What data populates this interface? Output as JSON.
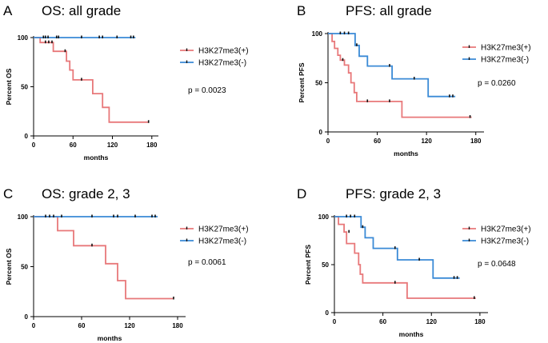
{
  "figure": {
    "colors": {
      "positive": "#e8787a",
      "negative": "#3a8ad6",
      "censor": "#111111"
    }
  },
  "chart_data": [
    {
      "type": "line",
      "panel_letter": "A",
      "title": "OS: all grade",
      "xlabel": "months",
      "ylabel": "Percent OS",
      "xlim": [
        0,
        190
      ],
      "ylim": [
        0,
        100
      ],
      "xticks": [
        0,
        60,
        120,
        180
      ],
      "yticks": [
        0,
        50,
        100
      ],
      "p_value": "p =  0.0023",
      "series": [
        {
          "name": "H3K27me3(+)",
          "color": "#e8787a",
          "steps": [
            [
              0,
              100
            ],
            [
              10,
              100
            ],
            [
              10,
              95
            ],
            [
              15,
              95
            ],
            [
              15,
              95
            ],
            [
              30,
              95
            ],
            [
              30,
              86
            ],
            [
              50,
              86
            ],
            [
              50,
              76
            ],
            [
              55,
              76
            ],
            [
              55,
              67
            ],
            [
              60,
              67
            ],
            [
              60,
              57
            ],
            [
              90,
              57
            ],
            [
              90,
              43
            ],
            [
              105,
              43
            ],
            [
              105,
              29
            ],
            [
              115,
              29
            ],
            [
              115,
              14
            ],
            [
              175,
              14
            ]
          ],
          "censors": [
            [
              18,
              95
            ],
            [
              23,
              95
            ],
            [
              28,
              95
            ],
            [
              48,
              86
            ],
            [
              73,
              57
            ],
            [
              175,
              14
            ]
          ]
        },
        {
          "name": "H3K27me3(-)",
          "color": "#3a8ad6",
          "steps": [
            [
              0,
              100
            ],
            [
              155,
              100
            ]
          ],
          "censors": [
            [
              15,
              100
            ],
            [
              18,
              100
            ],
            [
              22,
              100
            ],
            [
              35,
              100
            ],
            [
              38,
              100
            ],
            [
              73,
              100
            ],
            [
              100,
              100
            ],
            [
              105,
              100
            ],
            [
              127,
              100
            ],
            [
              148,
              100
            ],
            [
              152,
              100
            ]
          ]
        }
      ]
    },
    {
      "type": "line",
      "panel_letter": "B",
      "title": "PFS: all grade",
      "xlabel": "months",
      "ylabel": "Percent PFS",
      "xlim": [
        0,
        190
      ],
      "ylim": [
        0,
        100
      ],
      "xticks": [
        0,
        60,
        120,
        180
      ],
      "yticks": [
        0,
        50,
        100
      ],
      "p_value": "p = 0.0260",
      "series": [
        {
          "name": "H3K27me3(+)",
          "color": "#e8787a",
          "steps": [
            [
              0,
              100
            ],
            [
              5,
              100
            ],
            [
              5,
              92
            ],
            [
              8,
              92
            ],
            [
              8,
              85
            ],
            [
              12,
              85
            ],
            [
              12,
              78
            ],
            [
              15,
              78
            ],
            [
              15,
              73
            ],
            [
              20,
              73
            ],
            [
              20,
              68
            ],
            [
              25,
              68
            ],
            [
              25,
              60
            ],
            [
              28,
              60
            ],
            [
              28,
              50
            ],
            [
              32,
              50
            ],
            [
              32,
              40
            ],
            [
              35,
              40
            ],
            [
              35,
              31
            ],
            [
              90,
              31
            ],
            [
              90,
              15
            ],
            [
              175,
              15
            ]
          ],
          "censors": [
            [
              18,
              73
            ],
            [
              48,
              31
            ],
            [
              75,
              31
            ],
            [
              173,
              15
            ]
          ]
        },
        {
          "name": "H3K27me3(-)",
          "color": "#3a8ad6",
          "steps": [
            [
              0,
              100
            ],
            [
              33,
              100
            ],
            [
              33,
              88
            ],
            [
              38,
              88
            ],
            [
              38,
              77
            ],
            [
              48,
              77
            ],
            [
              48,
              67
            ],
            [
              78,
              67
            ],
            [
              78,
              54
            ],
            [
              122,
              54
            ],
            [
              122,
              36
            ],
            [
              155,
              36
            ]
          ],
          "censors": [
            [
              15,
              100
            ],
            [
              20,
              100
            ],
            [
              25,
              100
            ],
            [
              35,
              88
            ],
            [
              75,
              67
            ],
            [
              105,
              54
            ],
            [
              148,
              36
            ],
            [
              152,
              36
            ]
          ]
        }
      ]
    },
    {
      "type": "line",
      "panel_letter": "C",
      "title": "OS: grade 2, 3",
      "xlabel": "months",
      "ylabel": "Percent OS",
      "xlim": [
        0,
        190
      ],
      "ylim": [
        0,
        100
      ],
      "xticks": [
        0,
        60,
        120,
        180
      ],
      "yticks": [
        0,
        50,
        100
      ],
      "p_value": "p =  0.0061",
      "series": [
        {
          "name": "H3K27me3(+)",
          "color": "#e8787a",
          "steps": [
            [
              0,
              100
            ],
            [
              30,
              100
            ],
            [
              30,
              86
            ],
            [
              50,
              86
            ],
            [
              50,
              71
            ],
            [
              90,
              71
            ],
            [
              90,
              53
            ],
            [
              105,
              53
            ],
            [
              105,
              36
            ],
            [
              115,
              36
            ],
            [
              115,
              18
            ],
            [
              175,
              18
            ]
          ],
          "censors": [
            [
              73,
              71
            ],
            [
              175,
              18
            ]
          ]
        },
        {
          "name": "H3K27me3(-)",
          "color": "#3a8ad6",
          "steps": [
            [
              0,
              100
            ],
            [
              155,
              100
            ]
          ],
          "censors": [
            [
              15,
              100
            ],
            [
              20,
              100
            ],
            [
              25,
              100
            ],
            [
              35,
              100
            ],
            [
              73,
              100
            ],
            [
              100,
              100
            ],
            [
              105,
              100
            ],
            [
              127,
              100
            ],
            [
              148,
              100
            ],
            [
              152,
              100
            ]
          ]
        }
      ]
    },
    {
      "type": "line",
      "panel_letter": "D",
      "title": "PFS: grade 2, 3",
      "xlabel": "months",
      "ylabel": "Percent PFS",
      "xlim": [
        0,
        190
      ],
      "ylim": [
        0,
        100
      ],
      "xticks": [
        0,
        60,
        120,
        180
      ],
      "yticks": [
        0,
        50,
        100
      ],
      "p_value": "p = 0.0648",
      "series": [
        {
          "name": "H3K27me3(+)",
          "color": "#e8787a",
          "steps": [
            [
              0,
              100
            ],
            [
              5,
              100
            ],
            [
              5,
              92
            ],
            [
              12,
              92
            ],
            [
              12,
              84
            ],
            [
              15,
              84
            ],
            [
              15,
              72
            ],
            [
              25,
              72
            ],
            [
              25,
              62
            ],
            [
              30,
              62
            ],
            [
              30,
              50
            ],
            [
              32,
              50
            ],
            [
              32,
              40
            ],
            [
              35,
              40
            ],
            [
              35,
              31
            ],
            [
              90,
              31
            ],
            [
              90,
              15
            ],
            [
              175,
              15
            ]
          ],
          "censors": [
            [
              18,
              84
            ],
            [
              75,
              31
            ],
            [
              173,
              15
            ]
          ]
        },
        {
          "name": "H3K27me3(-)",
          "color": "#3a8ad6",
          "steps": [
            [
              0,
              100
            ],
            [
              33,
              100
            ],
            [
              33,
              89
            ],
            [
              38,
              89
            ],
            [
              38,
              78
            ],
            [
              48,
              78
            ],
            [
              48,
              67
            ],
            [
              78,
              67
            ],
            [
              78,
              55
            ],
            [
              122,
              55
            ],
            [
              122,
              36
            ],
            [
              155,
              36
            ]
          ],
          "censors": [
            [
              15,
              100
            ],
            [
              20,
              100
            ],
            [
              25,
              100
            ],
            [
              35,
              89
            ],
            [
              75,
              67
            ],
            [
              105,
              55
            ],
            [
              148,
              36
            ],
            [
              152,
              36
            ]
          ]
        }
      ]
    }
  ]
}
